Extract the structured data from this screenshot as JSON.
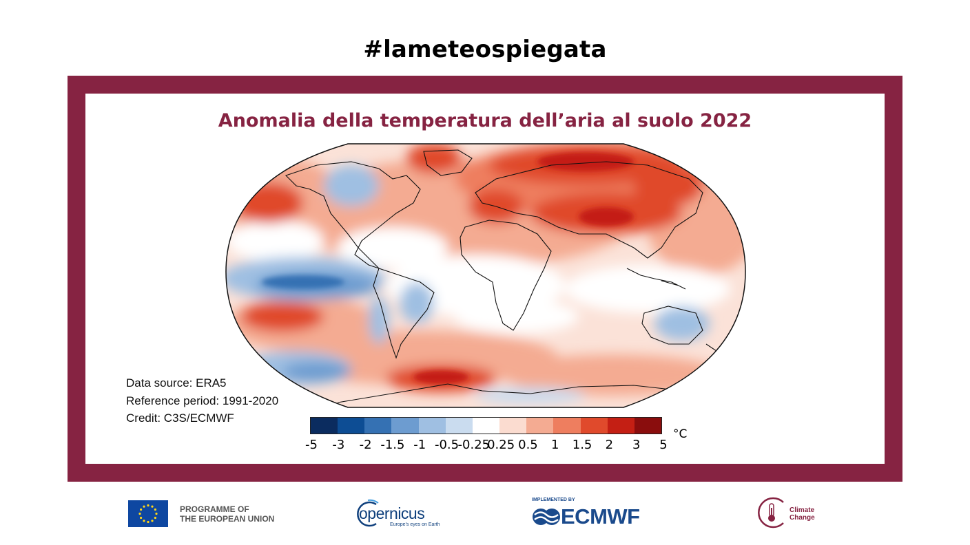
{
  "header": {
    "hashtag": "#lameteospiegata"
  },
  "map": {
    "title": "Anomalia della temperatura dell’aria al suolo 2022",
    "projection": "robinson-like",
    "regions": [
      {
        "name": "north-america-arctic",
        "anomaly": 1.5
      },
      {
        "name": "canada",
        "anomaly": -0.5
      },
      {
        "name": "greenland",
        "anomaly": 1.5
      },
      {
        "name": "europe",
        "anomaly": 2
      },
      {
        "name": "siberia-arctic",
        "anomaly": 3
      },
      {
        "name": "central-asia",
        "anomaly": 2
      },
      {
        "name": "north-pacific",
        "anomaly": 1.5
      },
      {
        "name": "equatorial-pacific",
        "anomaly": -1
      },
      {
        "name": "australia",
        "anomaly": -1
      },
      {
        "name": "antarctic-peninsula",
        "anomaly": 2
      },
      {
        "name": "southern-ocean",
        "anomaly": 1
      }
    ]
  },
  "source": {
    "line1": "Data source: ERA5",
    "line2": "Reference period: 1991-2020",
    "line3": "Credit: C3S/ECMWF"
  },
  "legend": {
    "unit": "°C",
    "ticks": [
      "-5",
      "-3",
      "-2",
      "-1.5",
      "-1",
      "-0.5",
      "-0.25",
      "0.25",
      "0.5",
      "1",
      "1.5",
      "2",
      "3",
      "5"
    ],
    "colors": [
      "#0b2c5f",
      "#0d4d94",
      "#3571b3",
      "#6d9cd0",
      "#9fbfe2",
      "#cadcef",
      "#ffffff",
      "#fbdcd0",
      "#f4ab92",
      "#ee7e5f",
      "#e04a2c",
      "#c41f14",
      "#8a0d0d"
    ]
  },
  "footer": {
    "eu_line1": "PROGRAMME OF",
    "eu_line2": "THE EUROPEAN UNION",
    "copernicus_name": "opernicus",
    "copernicus_tagline": "Europe's eyes on Earth",
    "ecmwf_implemented": "IMPLEMENTED BY",
    "ecmwf_name": "ECMWF",
    "cc_line1": "Climate",
    "cc_line2": "Change"
  }
}
